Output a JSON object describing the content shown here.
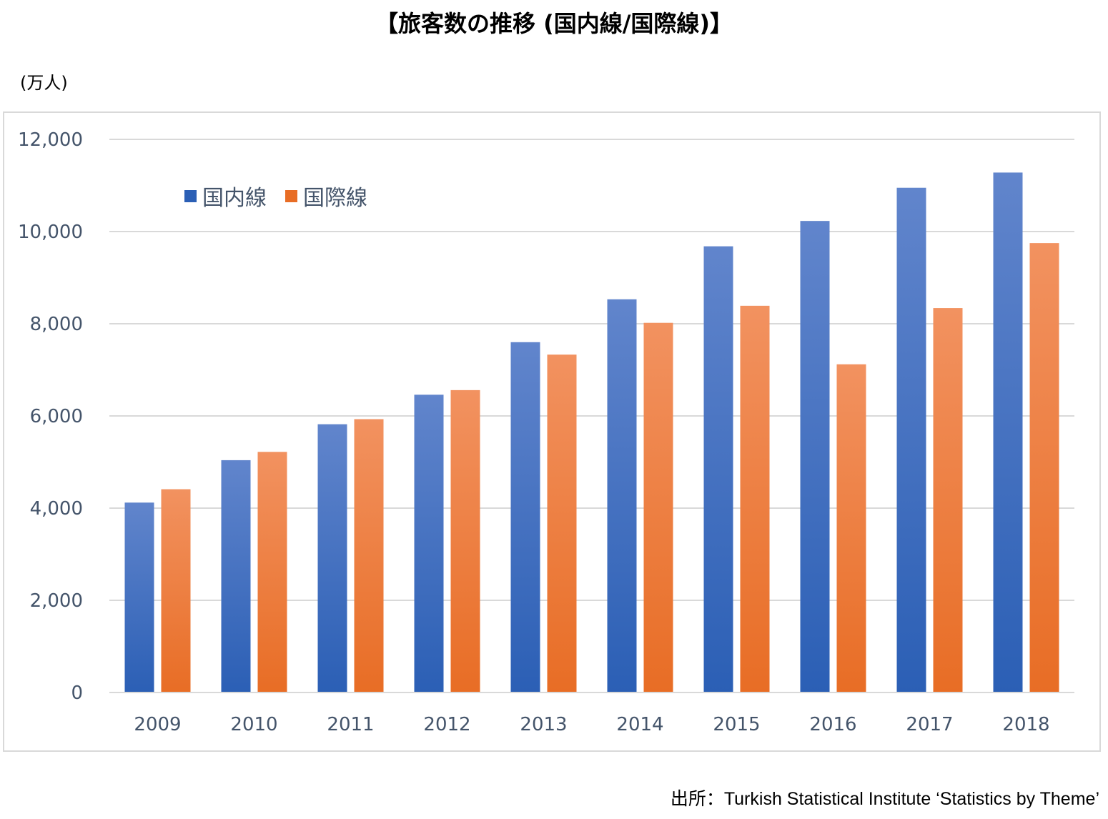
{
  "title": "【旅客数の推移 (国内線/国際線)】",
  "unit_label": "(万人)",
  "source": "出所：Turkish Statistical Institute ‘Statistics by Theme’",
  "colors": {
    "domestic_top": "#6185cc",
    "domestic_bottom": "#2b5fb5",
    "international_top": "#f29260",
    "international_bottom": "#e86d25",
    "grid": "#d9d9d9",
    "tick_text": "#44546a"
  },
  "chart_data": {
    "type": "bar",
    "categories": [
      "2009",
      "2010",
      "2011",
      "2012",
      "2013",
      "2014",
      "2015",
      "2016",
      "2017",
      "2018"
    ],
    "series": [
      {
        "name": "国内線",
        "values": [
          4120,
          5040,
          5820,
          6460,
          7600,
          8530,
          9680,
          10230,
          10950,
          11280
        ]
      },
      {
        "name": "国際線",
        "values": [
          4410,
          5220,
          5930,
          6560,
          7330,
          8020,
          8390,
          7120,
          8340,
          9750
        ]
      }
    ],
    "ylim": [
      0,
      12000
    ],
    "yticks": [
      0,
      2000,
      4000,
      6000,
      8000,
      10000,
      12000
    ],
    "ytick_labels": [
      "0",
      "2,000",
      "4,000",
      "6,000",
      "8,000",
      "10,000",
      "12,000"
    ],
    "grid": true,
    "legend_position": "top-left"
  }
}
